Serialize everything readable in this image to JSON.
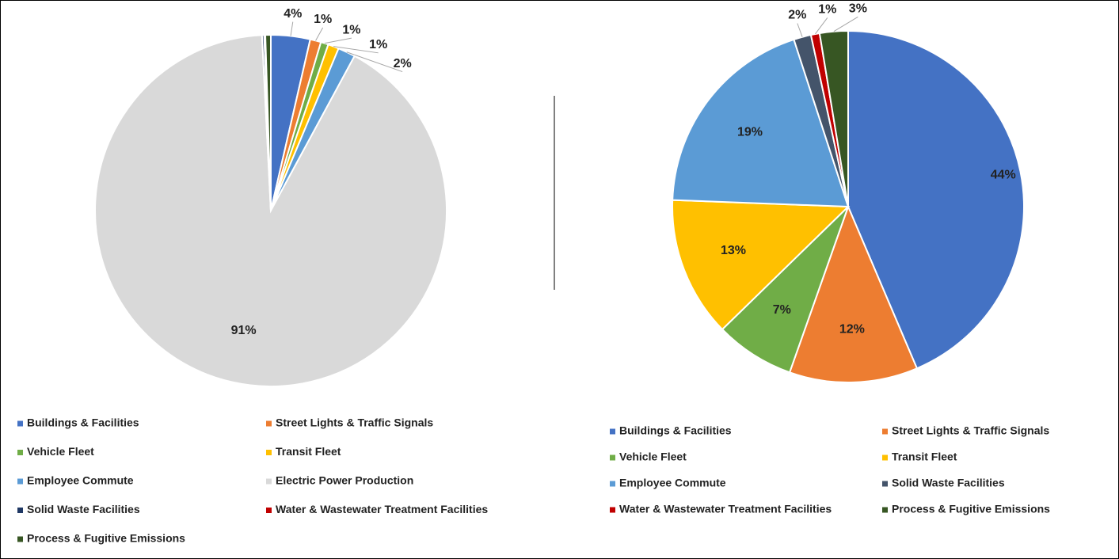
{
  "chart_data": [
    {
      "type": "pie",
      "categories": [
        "Buildings & Facilities",
        "Street Lights & Traffic Signals",
        "Vehicle Fleet",
        "Transit Fleet",
        "Employee Commute",
        "Electric Power Production",
        "Solid Waste Facilities",
        "Water & Wastewater Treatment Facilities",
        "Process & Fugitive Emissions"
      ],
      "values": [
        3.6,
        1,
        0.7,
        1,
        1.6,
        91.3,
        0.2,
        0.1,
        0.5
      ],
      "value_labels": [
        "4%",
        "1%",
        "1%",
        "1%",
        "2%",
        "91%",
        null,
        null,
        null
      ],
      "colors": [
        "#4472c4",
        "#ed7d31",
        "#70ad47",
        "#ffc000",
        "#5b9bd5",
        "#d9d9d9",
        "#1f3864",
        "#c00000",
        "#375623"
      ],
      "legend": "bottom"
    },
    {
      "type": "pie",
      "categories": [
        "Buildings & Facilities",
        "Street Lights & Traffic Signals",
        "Vehicle Fleet",
        "Transit Fleet",
        "Employee Commute",
        "Solid Waste Facilities",
        "Water & Wastewater Treatment Facilities",
        "Process & Fugitive Emissions"
      ],
      "values": [
        43.6,
        11.8,
        7.3,
        12.9,
        19.4,
        1.6,
        0.8,
        2.6
      ],
      "value_labels": [
        "44%",
        "12%",
        "7%",
        "13%",
        "19%",
        "2%",
        "1%",
        "3%"
      ],
      "colors": [
        "#4472c4",
        "#ed7d31",
        "#70ad47",
        "#ffc000",
        "#5b9bd5",
        "#44546a",
        "#c00000",
        "#375623"
      ],
      "legend": "bottom"
    }
  ]
}
